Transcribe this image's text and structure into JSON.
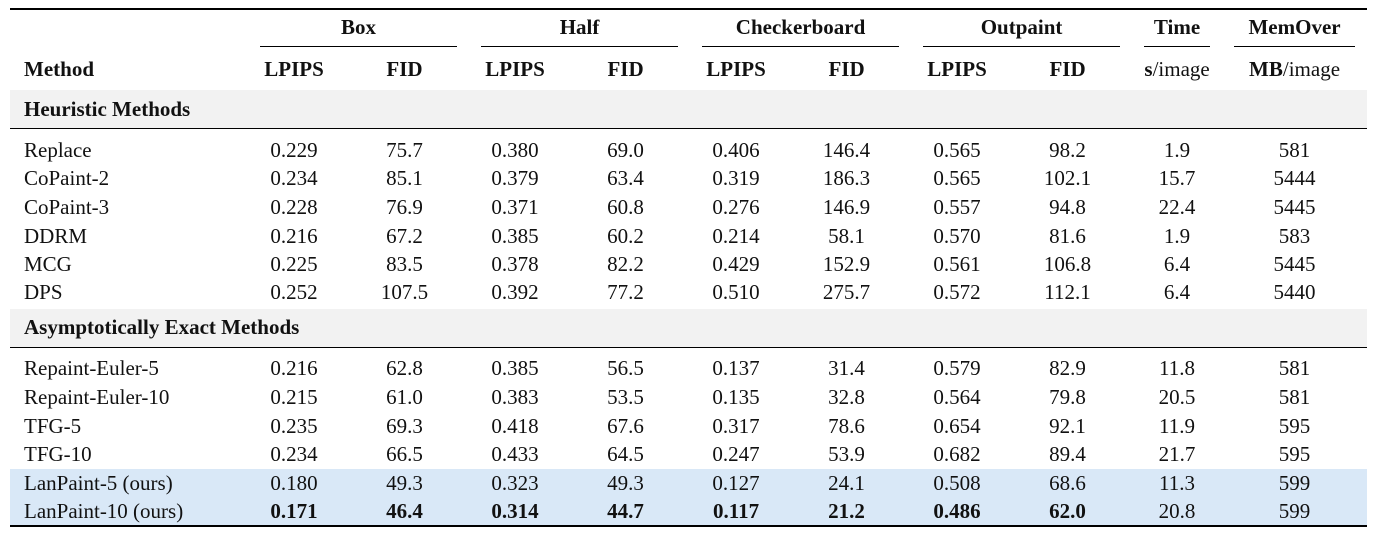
{
  "header": {
    "method": "Method",
    "groups": [
      {
        "label": "Box",
        "cols": [
          "LPIPS",
          "FID"
        ]
      },
      {
        "label": "Half",
        "cols": [
          "LPIPS",
          "FID"
        ]
      },
      {
        "label": "Checkerboard",
        "cols": [
          "LPIPS",
          "FID"
        ]
      },
      {
        "label": "Outpaint",
        "cols": [
          "LPIPS",
          "FID"
        ]
      }
    ],
    "extra": [
      {
        "label": "Time",
        "unit": "s",
        "rest": "/image"
      },
      {
        "label": "MemOver",
        "unit": "MB",
        "rest": "/image"
      }
    ]
  },
  "sections": [
    {
      "title": "Heuristic Methods",
      "rows": [
        {
          "method": "Replace",
          "values": [
            "0.229",
            "75.7",
            "0.380",
            "69.0",
            "0.406",
            "146.4",
            "0.565",
            "98.2",
            "1.9",
            "581"
          ]
        },
        {
          "method": "CoPaint-2",
          "values": [
            "0.234",
            "85.1",
            "0.379",
            "63.4",
            "0.319",
            "186.3",
            "0.565",
            "102.1",
            "15.7",
            "5444"
          ]
        },
        {
          "method": "CoPaint-3",
          "values": [
            "0.228",
            "76.9",
            "0.371",
            "60.8",
            "0.276",
            "146.9",
            "0.557",
            "94.8",
            "22.4",
            "5445"
          ]
        },
        {
          "method": "DDRM",
          "values": [
            "0.216",
            "67.2",
            "0.385",
            "60.2",
            "0.214",
            "58.1",
            "0.570",
            "81.6",
            "1.9",
            "583"
          ]
        },
        {
          "method": "MCG",
          "values": [
            "0.225",
            "83.5",
            "0.378",
            "82.2",
            "0.429",
            "152.9",
            "0.561",
            "106.8",
            "6.4",
            "5445"
          ]
        },
        {
          "method": "DPS",
          "values": [
            "0.252",
            "107.5",
            "0.392",
            "77.2",
            "0.510",
            "275.7",
            "0.572",
            "112.1",
            "6.4",
            "5440"
          ]
        }
      ]
    },
    {
      "title": "Asymptotically Exact Methods",
      "rows": [
        {
          "method": "Repaint-Euler-5",
          "values": [
            "0.216",
            "62.8",
            "0.385",
            "56.5",
            "0.137",
            "31.4",
            "0.579",
            "82.9",
            "11.8",
            "581"
          ]
        },
        {
          "method": "Repaint-Euler-10",
          "values": [
            "0.215",
            "61.0",
            "0.383",
            "53.5",
            "0.135",
            "32.8",
            "0.564",
            "79.8",
            "20.5",
            "581"
          ]
        },
        {
          "method": "TFG-5",
          "values": [
            "0.235",
            "69.3",
            "0.418",
            "67.6",
            "0.317",
            "78.6",
            "0.654",
            "92.1",
            "11.9",
            "595"
          ]
        },
        {
          "method": "TFG-10",
          "values": [
            "0.234",
            "66.5",
            "0.433",
            "64.5",
            "0.247",
            "53.9",
            "0.682",
            "89.4",
            "21.7",
            "595"
          ]
        },
        {
          "method": "LanPaint-5 (ours)",
          "highlight": true,
          "values": [
            "0.180",
            "49.3",
            "0.323",
            "49.3",
            "0.127",
            "24.1",
            "0.508",
            "68.6",
            "11.3",
            "599"
          ]
        },
        {
          "method": "LanPaint-10 (ours)",
          "highlight": true,
          "bold": [
            true,
            true,
            true,
            true,
            true,
            true,
            true,
            true,
            false,
            false
          ],
          "values": [
            "0.171",
            "46.4",
            "0.314",
            "44.7",
            "0.117",
            "21.2",
            "0.486",
            "62.0",
            "20.8",
            "599"
          ]
        }
      ]
    }
  ]
}
